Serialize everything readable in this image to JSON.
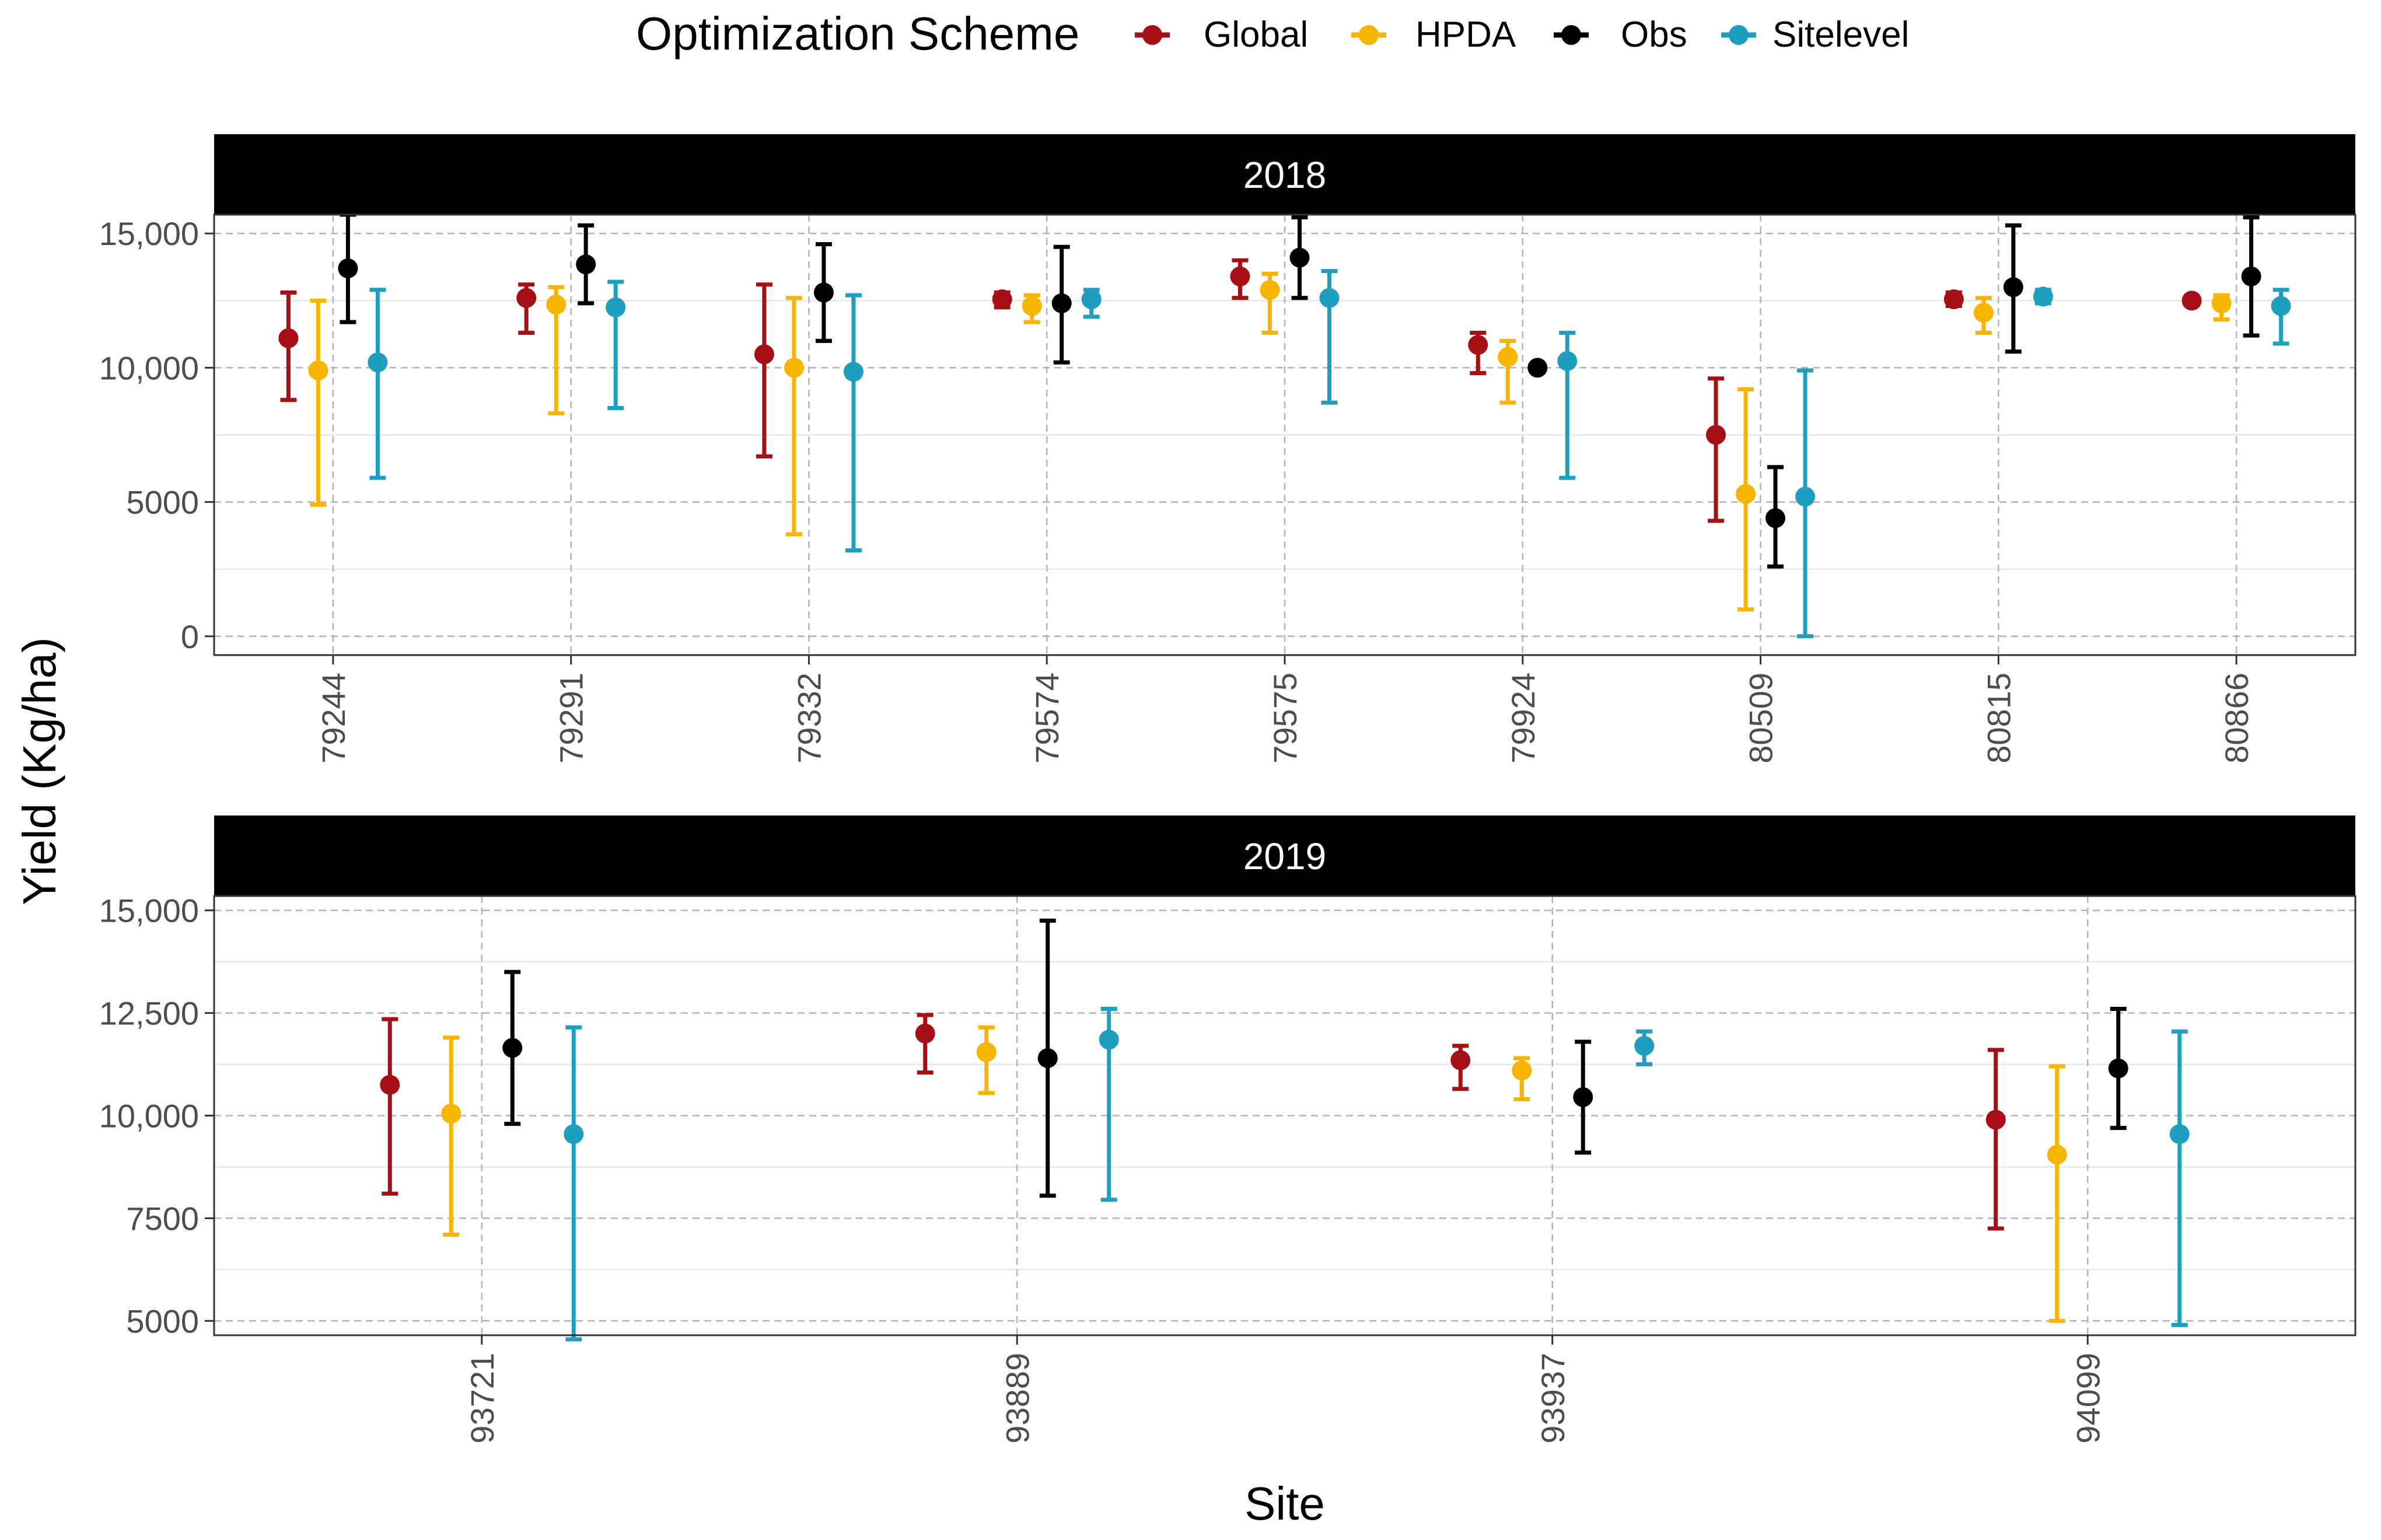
{
  "chart_data": {
    "type": "scatter",
    "subtype": "point-with-errorbars, faceted",
    "legend": {
      "title": "Optimization Scheme",
      "position": "top",
      "entries": [
        {
          "name": "Global",
          "color": "#A50F15"
        },
        {
          "name": "HPDA",
          "color": "#F7B500"
        },
        {
          "name": "Obs",
          "color": "#000000"
        },
        {
          "name": "Sitelevel",
          "color": "#1F9FBF"
        }
      ]
    },
    "ylabel": "Yield (Kg/ha)",
    "xlabel": "Site",
    "grid": true,
    "panels": [
      {
        "title": "2018",
        "ylim": [
          -700,
          15700
        ],
        "yticks": [
          0,
          5000,
          10000,
          15000
        ],
        "ytick_labels": [
          "0",
          "5000",
          "10,000",
          "15,000"
        ],
        "categories": [
          "79244",
          "79291",
          "79332",
          "79574",
          "79575",
          "79924",
          "80509",
          "80815",
          "80866"
        ],
        "series": [
          {
            "name": "Global",
            "values": [
              11100,
              12600,
              10500,
              12550,
              13400,
              10850,
              7500,
              12550,
              12500
            ],
            "lower": [
              8800,
              11300,
              6700,
              12250,
              12600,
              9800,
              4300,
              12300,
              12400
            ],
            "upper": [
              12800,
              13100,
              13100,
              12800,
              14000,
              11300,
              9600,
              12800,
              12600
            ]
          },
          {
            "name": "HPDA",
            "values": [
              9900,
              12350,
              10000,
              12300,
              12900,
              10400,
              5300,
              12050,
              12400
            ],
            "lower": [
              4900,
              8300,
              3800,
              11700,
              11300,
              8700,
              1000,
              11300,
              11800
            ],
            "upper": [
              12500,
              13000,
              12600,
              12700,
              13500,
              11000,
              9200,
              12600,
              12700
            ]
          },
          {
            "name": "Obs",
            "values": [
              13700,
              13850,
              12800,
              12400,
              14100,
              10000,
              4400,
              13000,
              13400
            ],
            "lower": [
              11700,
              12400,
              11000,
              10200,
              12600,
              10000,
              2600,
              10600,
              11200
            ],
            "upper": [
              15700,
              15300,
              14600,
              14500,
              15600,
              10000,
              6300,
              15300,
              15600
            ]
          },
          {
            "name": "Sitelevel",
            "values": [
              10200,
              12250,
              9850,
              12550,
              12600,
              10250,
              5200,
              12650,
              12300
            ],
            "lower": [
              5900,
              8500,
              3200,
              11900,
              8700,
              5900,
              0,
              12400,
              10900
            ],
            "upper": [
              12900,
              13200,
              12700,
              12900,
              13600,
              11300,
              9900,
              12900,
              12900
            ]
          }
        ]
      },
      {
        "title": "2019",
        "ylim": [
          4650,
          15350
        ],
        "yticks": [
          5000,
          7500,
          10000,
          12500,
          15000
        ],
        "ytick_labels": [
          "5000",
          "7500",
          "10,000",
          "12,500",
          "15,000"
        ],
        "categories": [
          "93721",
          "93889",
          "93937",
          "94099"
        ],
        "series": [
          {
            "name": "Global",
            "values": [
              10750,
              12000,
              11350,
              9900
            ],
            "lower": [
              8100,
              11050,
              10650,
              7250
            ],
            "upper": [
              12350,
              12450,
              11700,
              11600
            ]
          },
          {
            "name": "HPDA",
            "values": [
              10050,
              11550,
              11100,
              9050
            ],
            "lower": [
              7100,
              10550,
              10400,
              5000
            ],
            "upper": [
              11900,
              12150,
              11400,
              11200
            ]
          },
          {
            "name": "Obs",
            "values": [
              11650,
              11400,
              10450,
              11150
            ],
            "lower": [
              9800,
              8050,
              9100,
              9700
            ],
            "upper": [
              13500,
              14750,
              11800,
              12600
            ]
          },
          {
            "name": "Sitelevel",
            "values": [
              9550,
              11850,
              11700,
              9550
            ],
            "lower": [
              4550,
              7950,
              11250,
              4900
            ],
            "upper": [
              12150,
              12600,
              12050,
              12050
            ]
          }
        ]
      }
    ]
  }
}
